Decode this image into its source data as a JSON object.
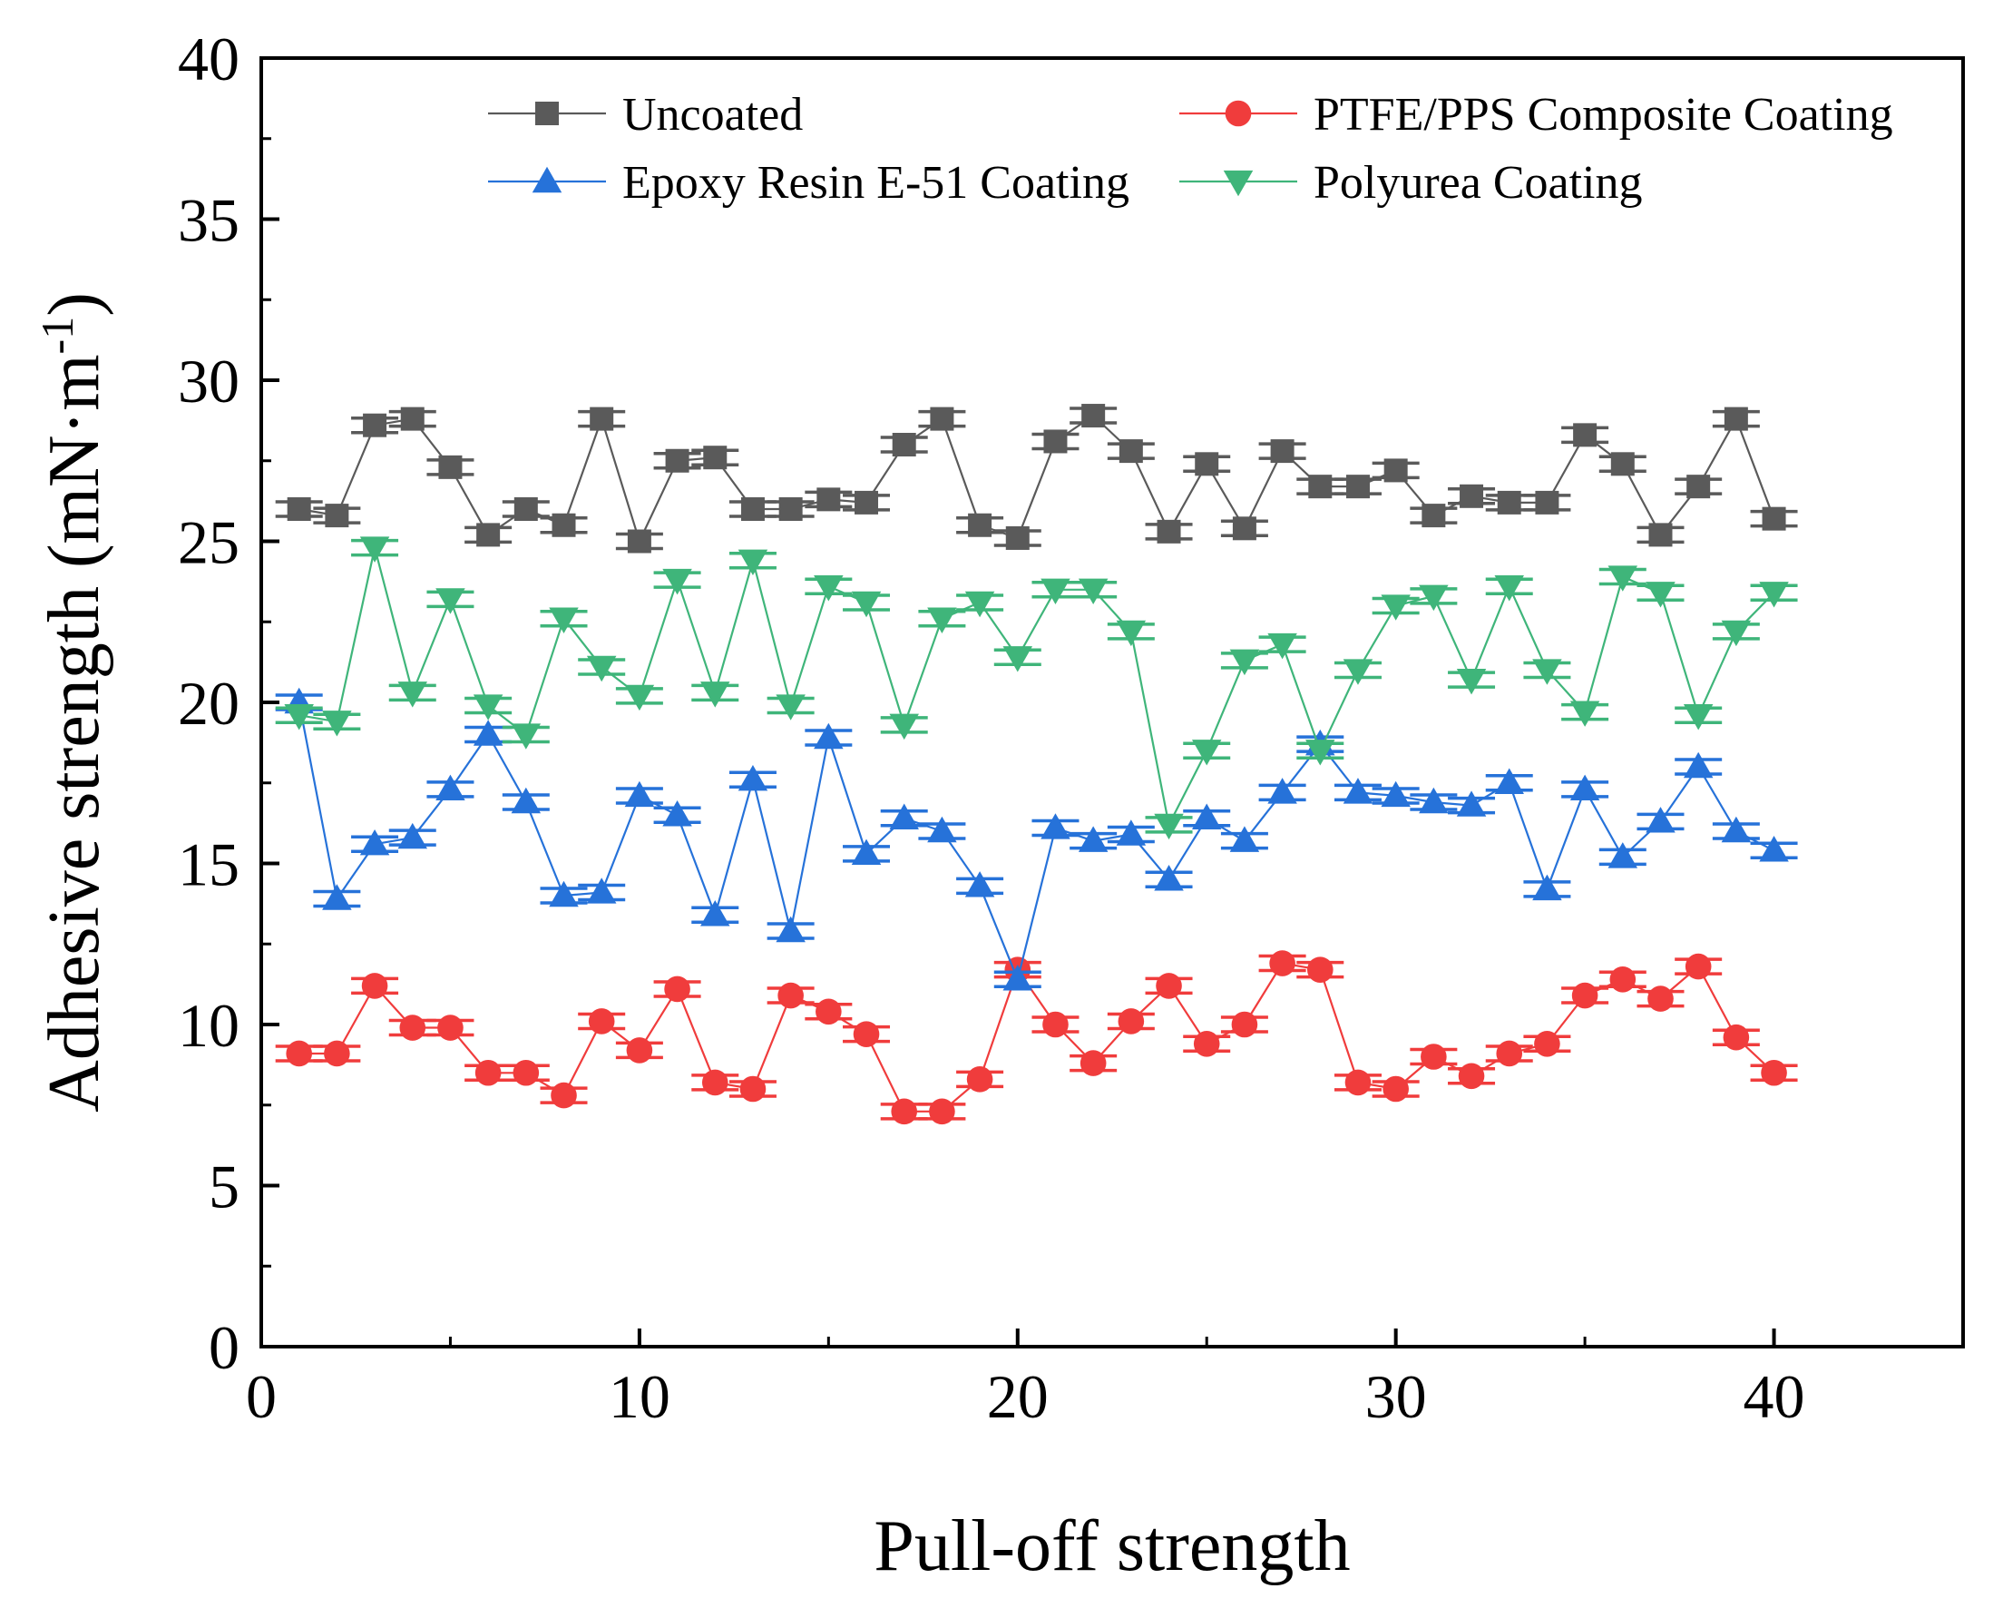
{
  "chart_data": {
    "type": "line",
    "title": "",
    "xlabel": "Pull-off strength",
    "ylabel": "Adhesive strength (mN·m",
    "ylabel_sup": "-1",
    "ylabel_close": ")",
    "xlim": [
      0,
      45
    ],
    "ylim": [
      0,
      40
    ],
    "xticks": [
      0,
      10,
      20,
      30,
      40
    ],
    "yticks": [
      0,
      5,
      10,
      15,
      20,
      25,
      30,
      35,
      40
    ],
    "legend_position": "top",
    "x": [
      1,
      2,
      3,
      4,
      5,
      6,
      7,
      8,
      9,
      10,
      11,
      12,
      13,
      14,
      15,
      16,
      17,
      18,
      19,
      20,
      21,
      22,
      23,
      24,
      25,
      26,
      27,
      28,
      29,
      30,
      31,
      32,
      33,
      34,
      35,
      36,
      37,
      38,
      39,
      40
    ],
    "series": [
      {
        "name": "Uncoated",
        "color": "#5a5a5a",
        "marker": "square",
        "values": [
          26.0,
          25.8,
          28.6,
          28.8,
          27.3,
          25.2,
          26.0,
          25.5,
          28.8,
          25.0,
          27.5,
          27.6,
          26.0,
          26.0,
          26.3,
          26.2,
          28.0,
          28.8,
          25.5,
          25.1,
          28.1,
          28.9,
          27.8,
          25.3,
          27.4,
          25.4,
          27.8,
          26.7,
          26.7,
          27.2,
          25.8,
          26.4,
          26.2,
          26.2,
          28.3,
          27.4,
          25.2,
          26.7,
          28.8,
          25.7
        ]
      },
      {
        "name": "PTFE/PPS Composite Coating",
        "color": "#f03c3c",
        "marker": "circle",
        "values": [
          9.1,
          9.1,
          11.2,
          9.9,
          9.9,
          8.5,
          8.5,
          7.8,
          10.1,
          9.2,
          11.1,
          8.2,
          8.0,
          10.9,
          10.4,
          9.7,
          7.3,
          7.3,
          8.3,
          11.7,
          10.0,
          8.8,
          10.1,
          11.2,
          9.4,
          10.0,
          11.9,
          11.7,
          8.2,
          8.0,
          9.0,
          8.4,
          9.1,
          9.4,
          10.9,
          11.4,
          10.8,
          11.8,
          9.6,
          8.5
        ]
      },
      {
        "name": "Epoxy Resin E-51 Coating",
        "color": "#2672d9",
        "marker": "triangle-up",
        "values": [
          20.0,
          13.9,
          15.6,
          15.8,
          17.3,
          19.0,
          16.9,
          14.0,
          14.1,
          17.1,
          16.5,
          13.4,
          17.6,
          12.9,
          18.9,
          15.3,
          16.4,
          16.0,
          14.3,
          11.4,
          16.1,
          15.7,
          15.9,
          14.5,
          16.4,
          15.7,
          17.2,
          18.7,
          17.2,
          17.1,
          16.9,
          16.8,
          17.5,
          14.2,
          17.3,
          15.2,
          16.3,
          18.0,
          16.0,
          15.4
        ]
      },
      {
        "name": "Polyurea Coating",
        "color": "#3fb57a",
        "marker": "triangle-down",
        "values": [
          19.6,
          19.4,
          24.8,
          20.3,
          23.2,
          19.9,
          19.0,
          22.6,
          21.1,
          20.2,
          23.8,
          20.3,
          24.4,
          19.9,
          23.6,
          23.1,
          19.3,
          22.6,
          23.1,
          21.4,
          23.5,
          23.5,
          22.2,
          16.2,
          18.5,
          21.3,
          21.8,
          18.5,
          21.0,
          23.0,
          23.3,
          20.7,
          23.6,
          21.0,
          19.7,
          23.9,
          23.4,
          19.6,
          22.2,
          23.4
        ]
      }
    ]
  }
}
